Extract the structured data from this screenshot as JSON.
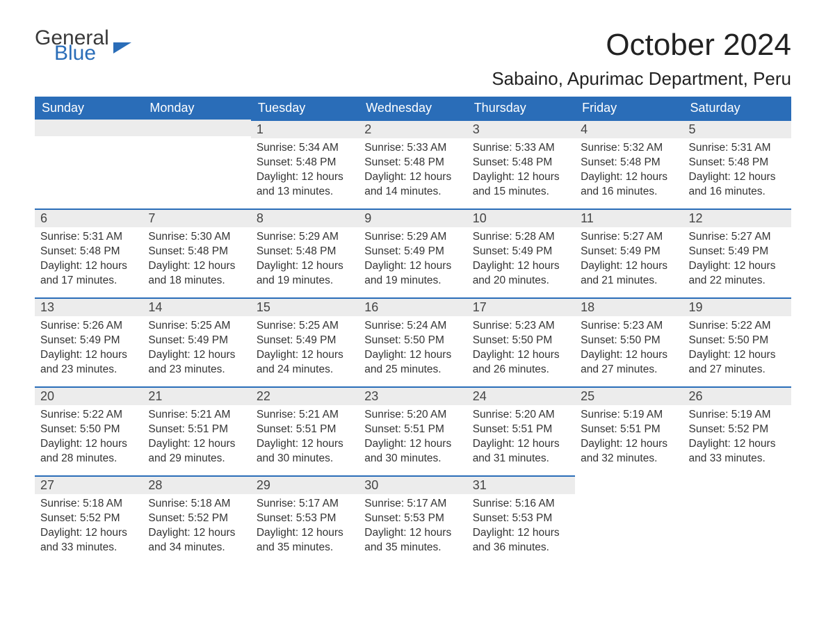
{
  "brand": {
    "part1": "General",
    "part2": "Blue"
  },
  "title": "October 2024",
  "location": "Sabaino, Apurimac Department, Peru",
  "columns": [
    "Sunday",
    "Monday",
    "Tuesday",
    "Wednesday",
    "Thursday",
    "Friday",
    "Saturday"
  ],
  "colors": {
    "header_bg": "#2a6db8",
    "header_text": "#ffffff",
    "daybar_bg": "#ececec",
    "daybar_border": "#2a6db8",
    "body_text": "#333333",
    "page_bg": "#ffffff",
    "brand_gray": "#3a3a3a",
    "brand_blue": "#2a6db8"
  },
  "fonts": {
    "title_size_pt": 33,
    "location_size_pt": 20,
    "header_size_pt": 14,
    "daynum_size_pt": 14,
    "body_size_pt": 12
  },
  "weeks": [
    [
      null,
      null,
      {
        "n": "1",
        "sunrise": "Sunrise: 5:34 AM",
        "sunset": "Sunset: 5:48 PM",
        "d1": "Daylight: 12 hours",
        "d2": "and 13 minutes."
      },
      {
        "n": "2",
        "sunrise": "Sunrise: 5:33 AM",
        "sunset": "Sunset: 5:48 PM",
        "d1": "Daylight: 12 hours",
        "d2": "and 14 minutes."
      },
      {
        "n": "3",
        "sunrise": "Sunrise: 5:33 AM",
        "sunset": "Sunset: 5:48 PM",
        "d1": "Daylight: 12 hours",
        "d2": "and 15 minutes."
      },
      {
        "n": "4",
        "sunrise": "Sunrise: 5:32 AM",
        "sunset": "Sunset: 5:48 PM",
        "d1": "Daylight: 12 hours",
        "d2": "and 16 minutes."
      },
      {
        "n": "5",
        "sunrise": "Sunrise: 5:31 AM",
        "sunset": "Sunset: 5:48 PM",
        "d1": "Daylight: 12 hours",
        "d2": "and 16 minutes."
      }
    ],
    [
      {
        "n": "6",
        "sunrise": "Sunrise: 5:31 AM",
        "sunset": "Sunset: 5:48 PM",
        "d1": "Daylight: 12 hours",
        "d2": "and 17 minutes."
      },
      {
        "n": "7",
        "sunrise": "Sunrise: 5:30 AM",
        "sunset": "Sunset: 5:48 PM",
        "d1": "Daylight: 12 hours",
        "d2": "and 18 minutes."
      },
      {
        "n": "8",
        "sunrise": "Sunrise: 5:29 AM",
        "sunset": "Sunset: 5:48 PM",
        "d1": "Daylight: 12 hours",
        "d2": "and 19 minutes."
      },
      {
        "n": "9",
        "sunrise": "Sunrise: 5:29 AM",
        "sunset": "Sunset: 5:49 PM",
        "d1": "Daylight: 12 hours",
        "d2": "and 19 minutes."
      },
      {
        "n": "10",
        "sunrise": "Sunrise: 5:28 AM",
        "sunset": "Sunset: 5:49 PM",
        "d1": "Daylight: 12 hours",
        "d2": "and 20 minutes."
      },
      {
        "n": "11",
        "sunrise": "Sunrise: 5:27 AM",
        "sunset": "Sunset: 5:49 PM",
        "d1": "Daylight: 12 hours",
        "d2": "and 21 minutes."
      },
      {
        "n": "12",
        "sunrise": "Sunrise: 5:27 AM",
        "sunset": "Sunset: 5:49 PM",
        "d1": "Daylight: 12 hours",
        "d2": "and 22 minutes."
      }
    ],
    [
      {
        "n": "13",
        "sunrise": "Sunrise: 5:26 AM",
        "sunset": "Sunset: 5:49 PM",
        "d1": "Daylight: 12 hours",
        "d2": "and 23 minutes."
      },
      {
        "n": "14",
        "sunrise": "Sunrise: 5:25 AM",
        "sunset": "Sunset: 5:49 PM",
        "d1": "Daylight: 12 hours",
        "d2": "and 23 minutes."
      },
      {
        "n": "15",
        "sunrise": "Sunrise: 5:25 AM",
        "sunset": "Sunset: 5:49 PM",
        "d1": "Daylight: 12 hours",
        "d2": "and 24 minutes."
      },
      {
        "n": "16",
        "sunrise": "Sunrise: 5:24 AM",
        "sunset": "Sunset: 5:50 PM",
        "d1": "Daylight: 12 hours",
        "d2": "and 25 minutes."
      },
      {
        "n": "17",
        "sunrise": "Sunrise: 5:23 AM",
        "sunset": "Sunset: 5:50 PM",
        "d1": "Daylight: 12 hours",
        "d2": "and 26 minutes."
      },
      {
        "n": "18",
        "sunrise": "Sunrise: 5:23 AM",
        "sunset": "Sunset: 5:50 PM",
        "d1": "Daylight: 12 hours",
        "d2": "and 27 minutes."
      },
      {
        "n": "19",
        "sunrise": "Sunrise: 5:22 AM",
        "sunset": "Sunset: 5:50 PM",
        "d1": "Daylight: 12 hours",
        "d2": "and 27 minutes."
      }
    ],
    [
      {
        "n": "20",
        "sunrise": "Sunrise: 5:22 AM",
        "sunset": "Sunset: 5:50 PM",
        "d1": "Daylight: 12 hours",
        "d2": "and 28 minutes."
      },
      {
        "n": "21",
        "sunrise": "Sunrise: 5:21 AM",
        "sunset": "Sunset: 5:51 PM",
        "d1": "Daylight: 12 hours",
        "d2": "and 29 minutes."
      },
      {
        "n": "22",
        "sunrise": "Sunrise: 5:21 AM",
        "sunset": "Sunset: 5:51 PM",
        "d1": "Daylight: 12 hours",
        "d2": "and 30 minutes."
      },
      {
        "n": "23",
        "sunrise": "Sunrise: 5:20 AM",
        "sunset": "Sunset: 5:51 PM",
        "d1": "Daylight: 12 hours",
        "d2": "and 30 minutes."
      },
      {
        "n": "24",
        "sunrise": "Sunrise: 5:20 AM",
        "sunset": "Sunset: 5:51 PM",
        "d1": "Daylight: 12 hours",
        "d2": "and 31 minutes."
      },
      {
        "n": "25",
        "sunrise": "Sunrise: 5:19 AM",
        "sunset": "Sunset: 5:51 PM",
        "d1": "Daylight: 12 hours",
        "d2": "and 32 minutes."
      },
      {
        "n": "26",
        "sunrise": "Sunrise: 5:19 AM",
        "sunset": "Sunset: 5:52 PM",
        "d1": "Daylight: 12 hours",
        "d2": "and 33 minutes."
      }
    ],
    [
      {
        "n": "27",
        "sunrise": "Sunrise: 5:18 AM",
        "sunset": "Sunset: 5:52 PM",
        "d1": "Daylight: 12 hours",
        "d2": "and 33 minutes."
      },
      {
        "n": "28",
        "sunrise": "Sunrise: 5:18 AM",
        "sunset": "Sunset: 5:52 PM",
        "d1": "Daylight: 12 hours",
        "d2": "and 34 minutes."
      },
      {
        "n": "29",
        "sunrise": "Sunrise: 5:17 AM",
        "sunset": "Sunset: 5:53 PM",
        "d1": "Daylight: 12 hours",
        "d2": "and 35 minutes."
      },
      {
        "n": "30",
        "sunrise": "Sunrise: 5:17 AM",
        "sunset": "Sunset: 5:53 PM",
        "d1": "Daylight: 12 hours",
        "d2": "and 35 minutes."
      },
      {
        "n": "31",
        "sunrise": "Sunrise: 5:16 AM",
        "sunset": "Sunset: 5:53 PM",
        "d1": "Daylight: 12 hours",
        "d2": "and 36 minutes."
      },
      null,
      null
    ]
  ]
}
